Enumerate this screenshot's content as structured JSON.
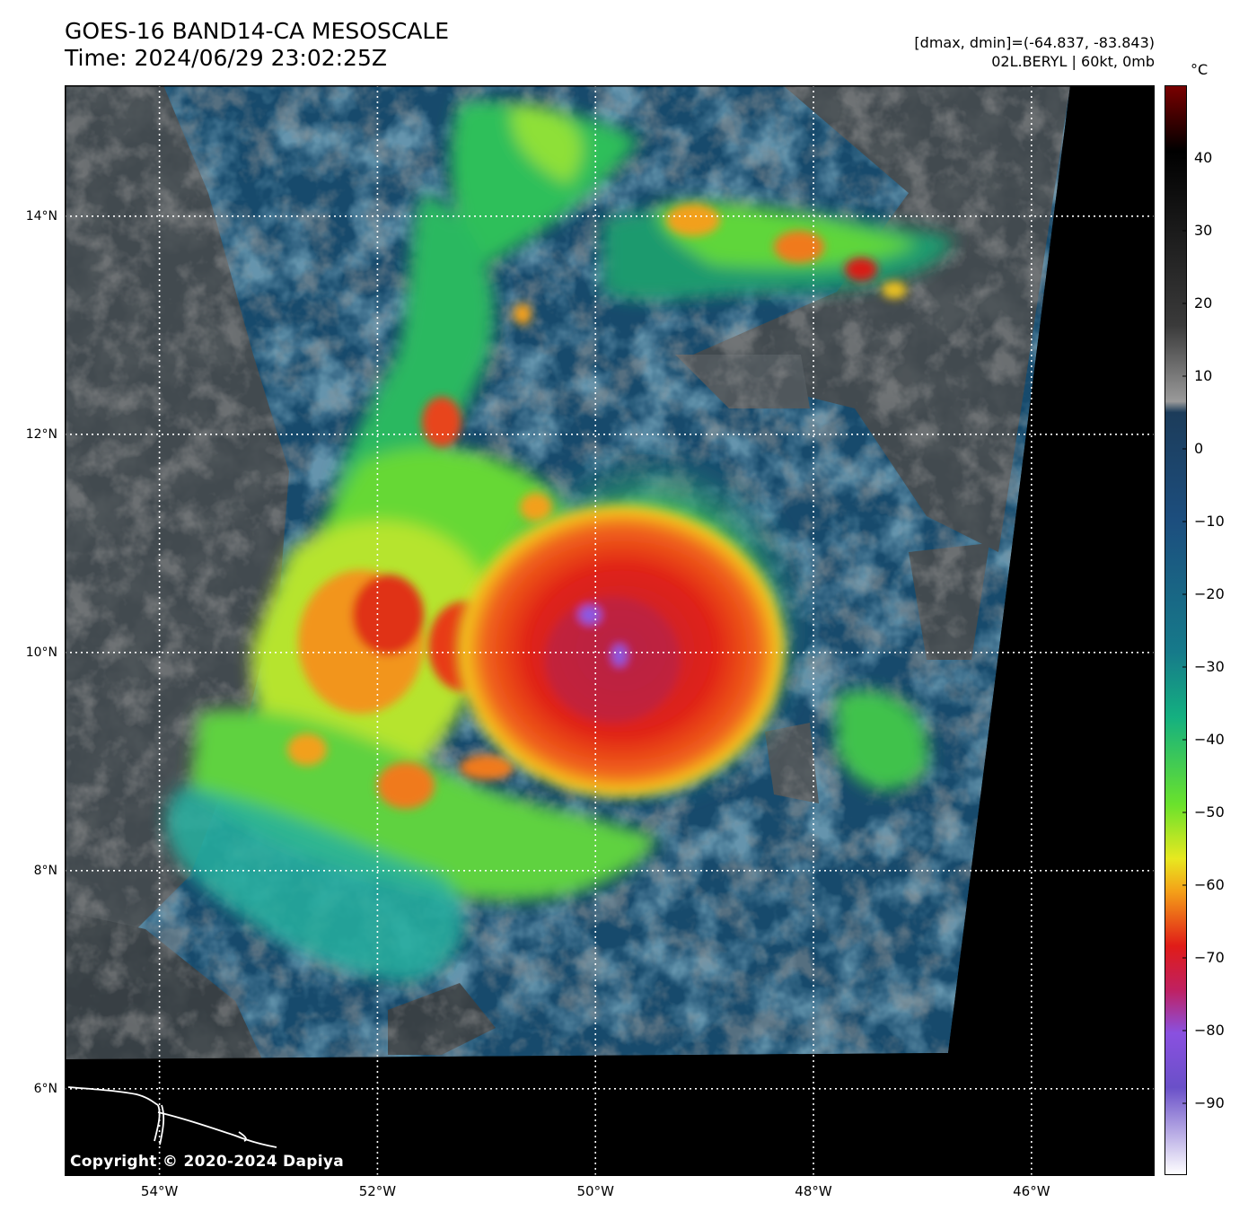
{
  "header": {
    "title_line1": "GOES-16 BAND14-CA MESOSCALE",
    "title_line2": "Time: 2024/06/29 23:02:25Z",
    "info_line1": "[dmax, dmin]=(-64.837, -83.843)",
    "info_line2": "02L.BERYL | 60kt, 0mb"
  },
  "map": {
    "lat_labels": [
      {
        "value": 14,
        "text": "14°N"
      },
      {
        "value": 12,
        "text": "12°N"
      },
      {
        "value": 10,
        "text": "10°N"
      },
      {
        "value": 8,
        "text": "8°N"
      },
      {
        "value": 6,
        "text": "6°N"
      }
    ],
    "lon_labels": [
      {
        "value": -54,
        "text": "54°W"
      },
      {
        "value": -52,
        "text": "52°W"
      },
      {
        "value": -50,
        "text": "50°W"
      },
      {
        "value": -48,
        "text": "48°W"
      },
      {
        "value": -46,
        "text": "46°W"
      }
    ],
    "lat_range": [
      5.2,
      15.2
    ],
    "lon_range": [
      -54.87,
      -44.87
    ],
    "storm_center": {
      "lat": 10.1,
      "lon": -50.0
    }
  },
  "colorbar": {
    "unit": "°C",
    "range": [
      -100,
      50
    ],
    "ticks": [
      {
        "value": 40,
        "text": "40"
      },
      {
        "value": 30,
        "text": "30"
      },
      {
        "value": 20,
        "text": "20"
      },
      {
        "value": 10,
        "text": "10"
      },
      {
        "value": 0,
        "text": "0"
      },
      {
        "value": -10,
        "text": "−10"
      },
      {
        "value": -20,
        "text": "−20"
      },
      {
        "value": -30,
        "text": "−30"
      },
      {
        "value": -40,
        "text": "−40"
      },
      {
        "value": -50,
        "text": "−50"
      },
      {
        "value": -60,
        "text": "−60"
      },
      {
        "value": -70,
        "text": "−70"
      },
      {
        "value": -80,
        "text": "−80"
      },
      {
        "value": -90,
        "text": "−90"
      }
    ]
  },
  "copyright": "Copyright © 2020-2024 Dapiya"
}
